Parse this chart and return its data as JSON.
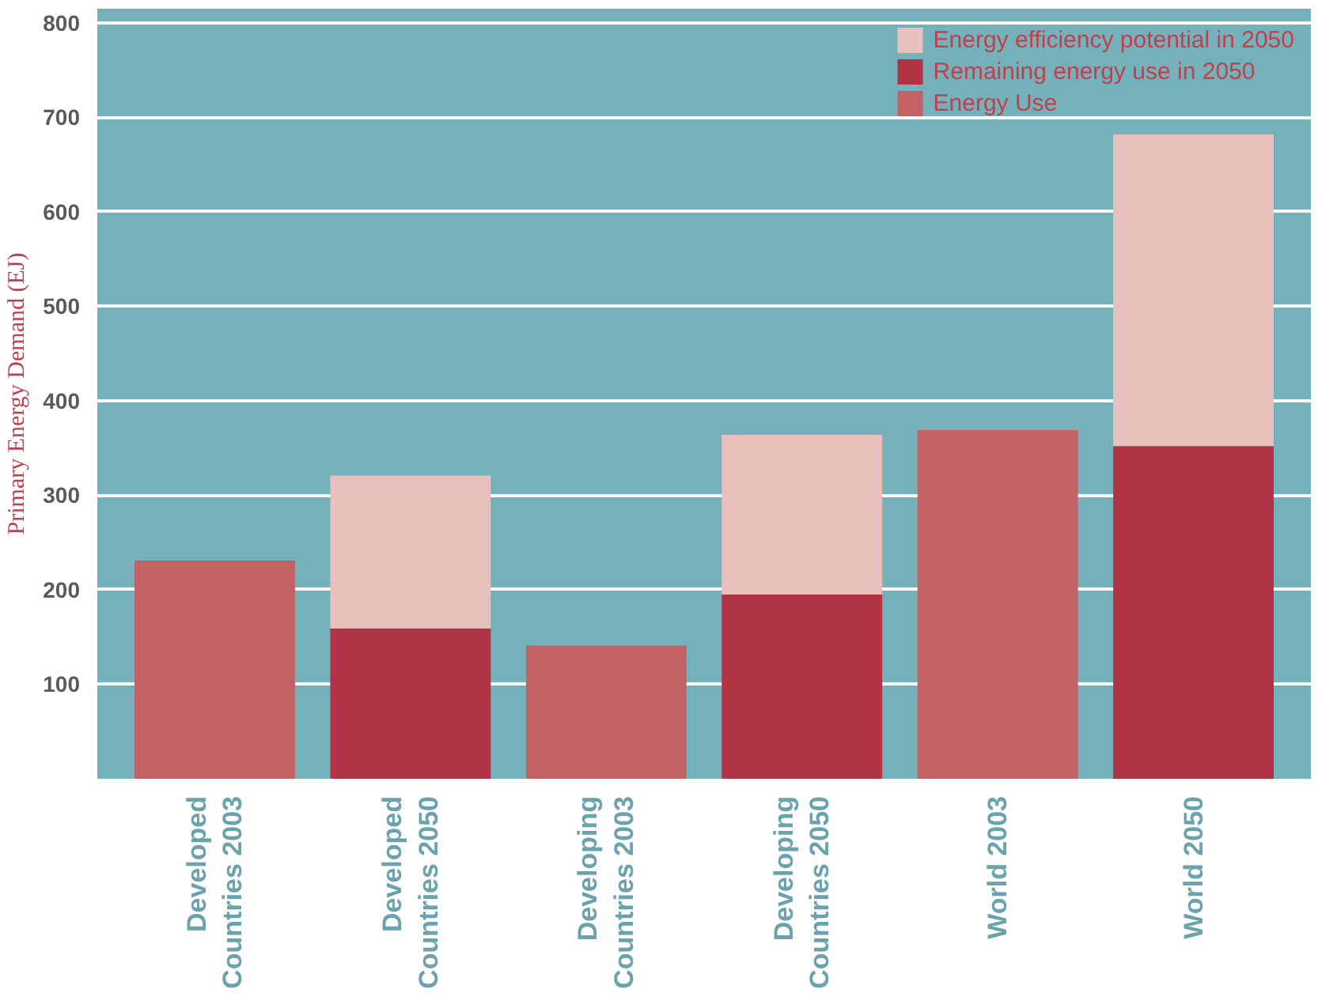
{
  "chart_data": {
    "type": "bar",
    "stacked": true,
    "ylabel": "Primary Energy Demand (EJ)",
    "categories": [
      "Developed\nCountries 2003",
      "Developed\nCountries 2050",
      "Developing\nCountries 2003",
      "Developing\nCountries 2050",
      "World 2003",
      "World 2050"
    ],
    "series": [
      {
        "name": "Energy Use",
        "color": "#c26264",
        "values": [
          231,
          null,
          141,
          null,
          369,
          null
        ]
      },
      {
        "name": "Remaining energy use in 2050",
        "color": "#b03444",
        "values": [
          null,
          159,
          null,
          195,
          null,
          352
        ]
      },
      {
        "name": "Energy efficiency potential in 2050",
        "color": "#e8c1bc",
        "values": [
          null,
          162,
          null,
          169,
          null,
          330
        ]
      }
    ],
    "ylim": [
      0,
      815
    ],
    "yticks": [
      100,
      200,
      300,
      400,
      500,
      600,
      700,
      800
    ],
    "grid": "y",
    "legend": "top right"
  }
}
